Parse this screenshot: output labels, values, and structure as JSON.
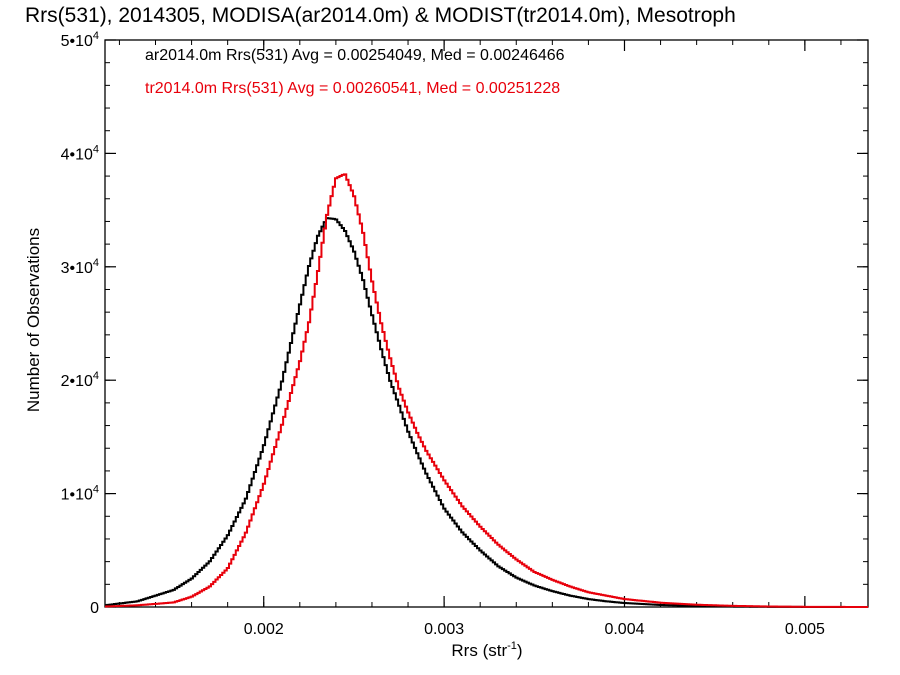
{
  "chart_data": {
    "type": "line",
    "title": "Rrs(531), 2014305, MODISA(ar2014.0m) & MODIST(tr2014.0m), Mesotroph",
    "xlabel": "Rrs (str",
    "xlabel_sup": "-1",
    "xlabel_suffix": ")",
    "ylabel": "Number of Observations",
    "xlim": [
      0.00112,
      0.00535
    ],
    "ylim": [
      0,
      50000
    ],
    "x_ticks": [
      {
        "value": 0.002,
        "label": "0.002"
      },
      {
        "value": 0.003,
        "label": "0.003"
      },
      {
        "value": 0.004,
        "label": "0.004"
      },
      {
        "value": 0.005,
        "label": "0.005"
      }
    ],
    "y_ticks": [
      {
        "value": 0,
        "label": "0",
        "sup": ""
      },
      {
        "value": 10000,
        "label": "1•10",
        "sup": "4"
      },
      {
        "value": 20000,
        "label": "2•10",
        "sup": "4"
      },
      {
        "value": 30000,
        "label": "3•10",
        "sup": "4"
      },
      {
        "value": 40000,
        "label": "4•10",
        "sup": "4"
      },
      {
        "value": 50000,
        "label": "5•10",
        "sup": "4"
      }
    ],
    "grid": false,
    "legend_position": "top-left",
    "series": [
      {
        "name": "ar2014.0m Rrs(531) Avg = 0.00254049, Med = 0.00246466",
        "color": "#000000",
        "x": [
          0.00112,
          0.0013,
          0.0015,
          0.0016,
          0.0017,
          0.0018,
          0.0019,
          0.002,
          0.0021,
          0.0022,
          0.00225,
          0.0023,
          0.00235,
          0.0024,
          0.00245,
          0.0025,
          0.00255,
          0.0026,
          0.00265,
          0.0027,
          0.00275,
          0.0028,
          0.00285,
          0.0029,
          0.003,
          0.0031,
          0.0032,
          0.0033,
          0.0034,
          0.0035,
          0.0036,
          0.0037,
          0.0038,
          0.0039,
          0.004,
          0.0042,
          0.0044,
          0.0046,
          0.0048,
          0.005,
          0.00535
        ],
        "y": [
          150,
          500,
          1500,
          2500,
          4000,
          6300,
          9500,
          14200,
          19800,
          26600,
          30000,
          32700,
          34300,
          34200,
          33200,
          31400,
          28900,
          25800,
          22800,
          20000,
          17800,
          15500,
          13600,
          11800,
          8700,
          6600,
          5000,
          3600,
          2600,
          1900,
          1400,
          1000,
          700,
          500,
          350,
          180,
          90,
          40,
          15,
          5,
          0
        ]
      },
      {
        "name": "tr2014.0m Rrs(531) Avg = 0.00260541, Med = 0.00251228",
        "color": "#e8000b",
        "x": [
          0.00112,
          0.0013,
          0.0015,
          0.0016,
          0.0017,
          0.0018,
          0.0019,
          0.002,
          0.0021,
          0.0022,
          0.00225,
          0.0023,
          0.00235,
          0.0024,
          0.00245,
          0.0025,
          0.00255,
          0.0026,
          0.00265,
          0.0027,
          0.00275,
          0.0028,
          0.00285,
          0.0029,
          0.003,
          0.0031,
          0.0032,
          0.0033,
          0.0034,
          0.0035,
          0.0036,
          0.0037,
          0.0038,
          0.0039,
          0.004,
          0.0042,
          0.0044,
          0.0046,
          0.0048,
          0.005,
          0.00535
        ],
        "y": [
          40,
          150,
          400,
          900,
          1800,
          3400,
          6500,
          10800,
          16000,
          21600,
          25000,
          29500,
          34500,
          37800,
          38200,
          36300,
          33100,
          28800,
          25100,
          22000,
          19300,
          17200,
          15400,
          13800,
          11200,
          8900,
          7100,
          5500,
          4200,
          3100,
          2400,
          1800,
          1300,
          1000,
          700,
          380,
          200,
          100,
          45,
          15,
          0
        ]
      }
    ]
  }
}
